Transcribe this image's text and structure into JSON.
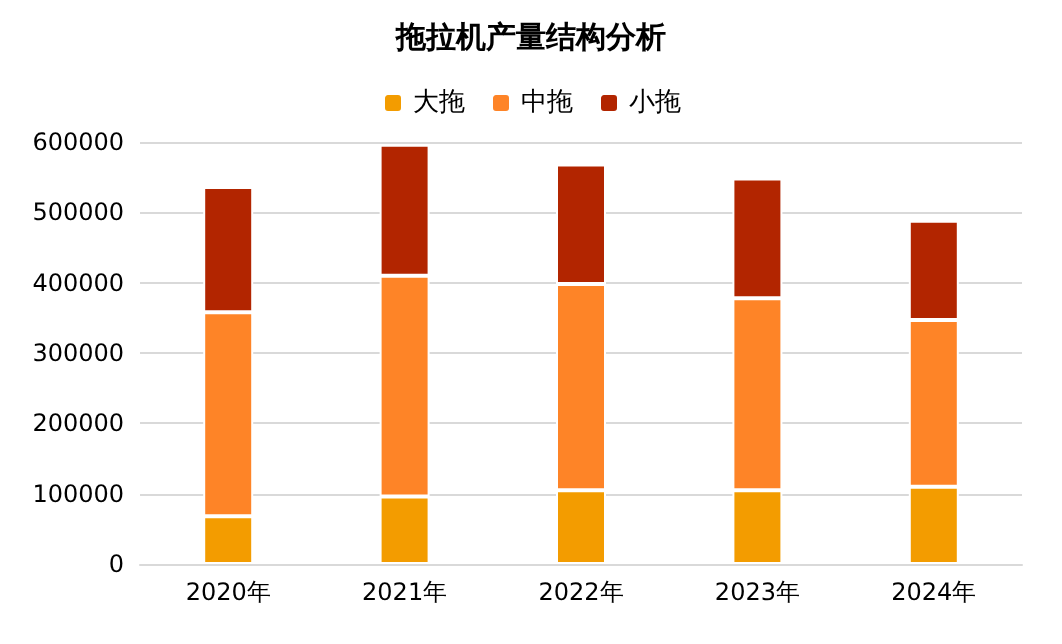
{
  "chart_data": {
    "type": "bar",
    "title": "拖拉机产量结构分析",
    "categories": [
      "2020年",
      "2021年",
      "2022年",
      "2023年",
      "2024年"
    ],
    "stacked": true,
    "legend": "top",
    "grid": "y",
    "ylim": [
      0,
      600000
    ],
    "yticks": [
      0,
      100000,
      200000,
      300000,
      400000,
      500000,
      600000
    ],
    "series": [
      {
        "name": "大拖",
        "color": "#f39c00",
        "values": [
          68000,
          96000,
          105000,
          105000,
          110000
        ]
      },
      {
        "name": "中拖",
        "color": "#fe8427",
        "values": [
          290000,
          314000,
          293000,
          273000,
          237000
        ]
      },
      {
        "name": "小拖",
        "color": "#b22500",
        "values": [
          178000,
          186000,
          170000,
          170000,
          141000
        ]
      }
    ]
  }
}
